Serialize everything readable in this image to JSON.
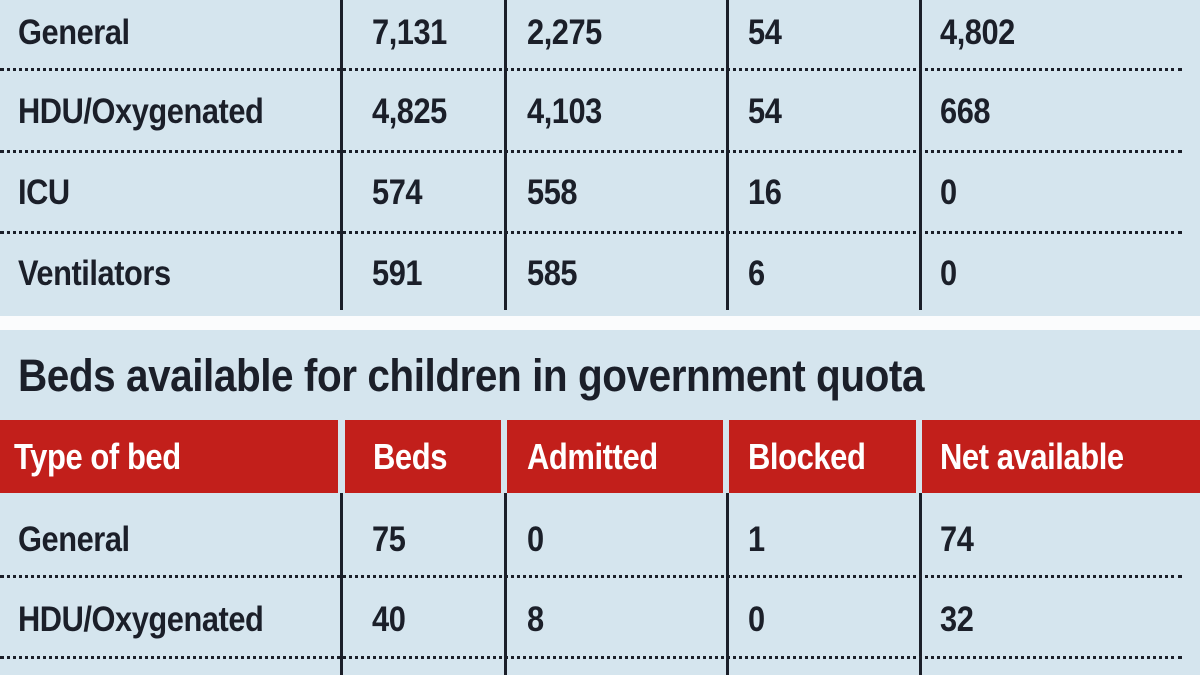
{
  "colors": {
    "background": "#d5e5ee",
    "header": "#c21f1b",
    "text": "#1b1f29"
  },
  "chart_data": [
    {
      "type": "table",
      "rows": [
        [
          "General",
          "7,131",
          "2,275",
          "54",
          "4,802"
        ],
        [
          "HDU/Oxygenated",
          "4,825",
          "4,103",
          "54",
          "668"
        ],
        [
          "ICU",
          "574",
          "558",
          "16",
          "0"
        ],
        [
          "Ventilators",
          "591",
          "585",
          "6",
          "0"
        ]
      ]
    },
    {
      "type": "table",
      "title": "Beds available for children in government quota",
      "columns": [
        "Type of bed",
        "Beds",
        "Admitted",
        "Blocked",
        "Net available"
      ],
      "rows": [
        [
          "General",
          "75",
          "0",
          "1",
          "74"
        ],
        [
          "HDU/Oxygenated",
          "40",
          "8",
          "0",
          "32"
        ]
      ]
    }
  ]
}
